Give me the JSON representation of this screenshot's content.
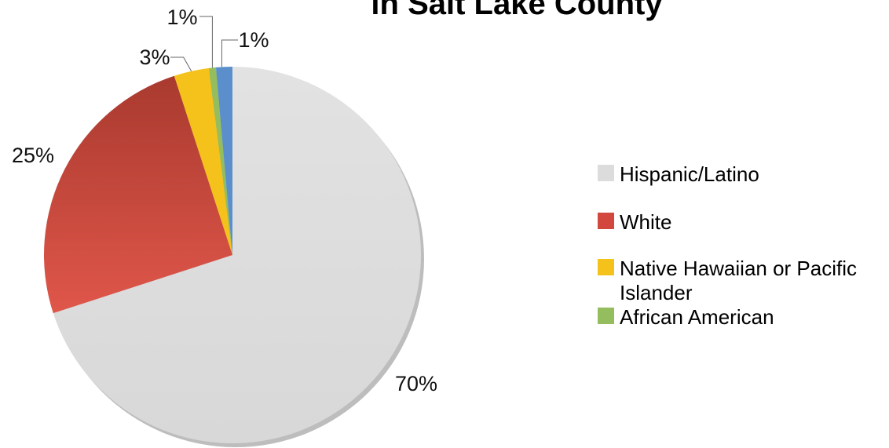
{
  "chart_data": {
    "type": "pie",
    "title": "in Salt Lake County",
    "slices": [
      {
        "label": "Hispanic/Latino",
        "value": 70,
        "display": "70%",
        "color": "#dcdcdc"
      },
      {
        "label": "White",
        "value": 25,
        "display": "25%",
        "color": "#d2483e"
      },
      {
        "label": "Native Hawaiian or Pacific Islander",
        "value": 3,
        "display": "3%",
        "color": "#f5c21b"
      },
      {
        "label": "African American",
        "value": 0.6,
        "display": "1%",
        "color": "#94bd5e"
      },
      {
        "label": "",
        "value": 1.4,
        "display": "1%",
        "color": "#5b8fcc"
      }
    ],
    "legend": {
      "placement": "right",
      "entries": [
        {
          "lines": [
            "Hispanic/Latino"
          ],
          "color": "#dcdcdc"
        },
        {
          "lines": [
            "White"
          ],
          "color": "#d2483e"
        },
        {
          "lines": [
            "Native Hawaiian or Pacific",
            "Islander"
          ],
          "color": "#f5c21b"
        },
        {
          "lines": [
            "African American"
          ],
          "color": "#94bd5e"
        }
      ]
    }
  }
}
